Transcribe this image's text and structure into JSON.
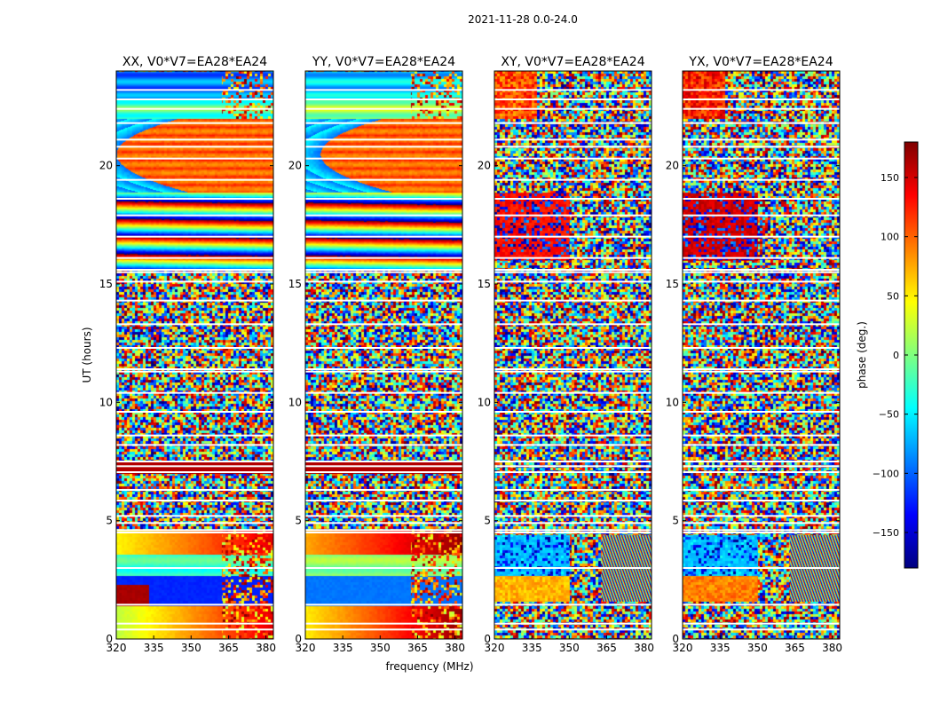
{
  "suptitle": "2021-11-28 0.0-24.0",
  "colors": {
    "jet": [
      "#00007f",
      "#0000ff",
      "#007fff",
      "#00ffff",
      "#7fff7f",
      "#ffff00",
      "#ff7f00",
      "#ff0000",
      "#7f0000"
    ],
    "blank": "#ffffff",
    "line": "#000000"
  },
  "chart_data": {
    "type": "heatmap",
    "xlabel": "frequency (MHz)",
    "ylabel": "UT (hours)",
    "xlim": [
      320,
      383
    ],
    "ylim": [
      0,
      24
    ],
    "xticks": [
      320,
      335,
      350,
      365,
      380
    ],
    "yticks": [
      0,
      5,
      10,
      15,
      20
    ],
    "colorbar": {
      "label": "phase (deg.)",
      "range": [
        -180,
        180
      ],
      "ticks": [
        -150,
        -100,
        -50,
        0,
        50,
        100,
        150
      ],
      "tick_labels": [
        "−150",
        "−100",
        "−50",
        "0",
        "50",
        "100",
        "150"
      ]
    },
    "blank_rows_ut": [
      0.4,
      0.65,
      1.45,
      3.0,
      4.5,
      4.6,
      4.9,
      5.2,
      5.85,
      6.3,
      7.05,
      7.3,
      7.5,
      8.2,
      8.6,
      9.6,
      10.4,
      11.3,
      11.4,
      12.3,
      13.3,
      14.3,
      15.1,
      15.5,
      15.6,
      16.1,
      17.0,
      17.9,
      18.6,
      19.4,
      20.3,
      20.8,
      21.1,
      21.8,
      22.4,
      22.8,
      23.2
    ],
    "panels": [
      {
        "title": "XX, V0*V7=EA28*EA24",
        "pol": "XX",
        "show_ylabels": true
      },
      {
        "title": "YY, V0*V7=EA28*EA24",
        "pol": "YY",
        "show_ylabels": true
      },
      {
        "title": "XY, V0*V7=EA28*EA24",
        "pol": "XY",
        "show_ylabels": true
      },
      {
        "title": "YX, V0*V7=EA28*EA24",
        "pol": "YX",
        "show_ylabels": true
      }
    ]
  }
}
